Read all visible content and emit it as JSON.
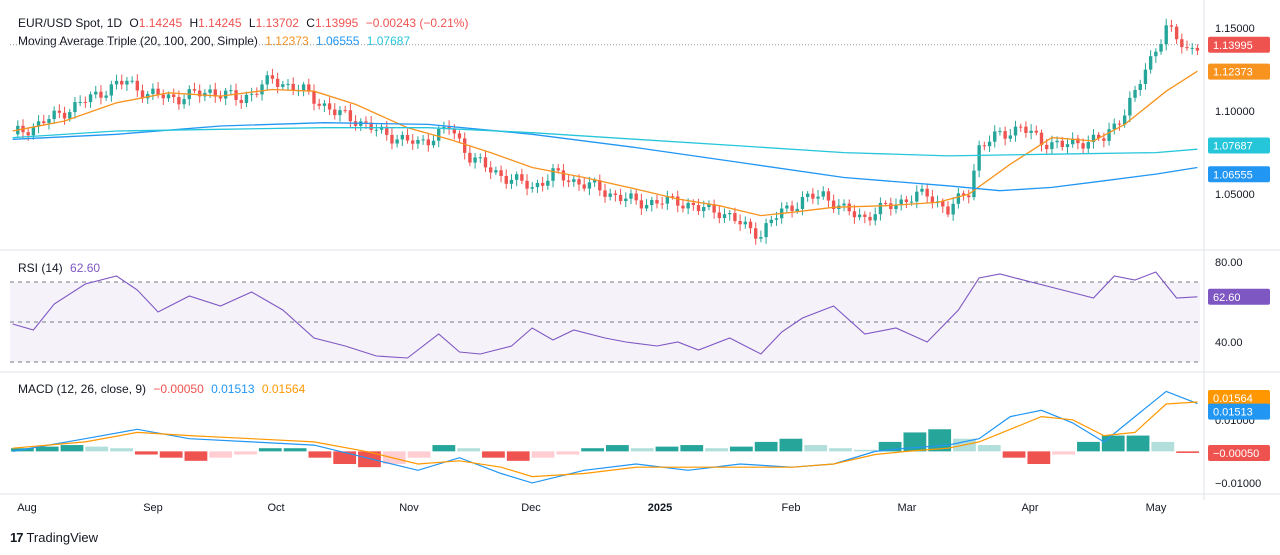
{
  "header": {
    "symbol": "EUR/USD Spot, 1D",
    "open_label": "O",
    "open": "1.14245",
    "high_label": "H",
    "high": "1.14245",
    "low_label": "L",
    "low": "1.13702",
    "close_label": "C",
    "close": "1.13995",
    "change": "−0.00243 (−0.21%)",
    "ma_title": "Moving Average Triple (20, 100, 200, Simple)",
    "ma20": "1.12373",
    "ma100": "1.06555",
    "ma200": "1.07687"
  },
  "rsi_panel": {
    "title": "RSI (14)",
    "value": "62.60"
  },
  "macd_panel": {
    "title": "MACD (12, 26, close, 9)",
    "hist": "−0.00050",
    "macd": "0.01513",
    "signal": "0.01564"
  },
  "footer": {
    "brand_mark": "17",
    "brand_name": "TradingView"
  },
  "colors": {
    "up": "#26a69a",
    "down": "#ef5350",
    "ma20": "#f7931e",
    "ma100": "#2196f3",
    "ma200": "#26c6da",
    "rsi": "#7e57c2",
    "macd": "#2196f3",
    "signal": "#ff9800"
  },
  "chart_data": [
    {
      "type": "candlestick",
      "title": "EUR/USD Spot, 1D",
      "x": [
        "Aug",
        "Sep",
        "Oct",
        "Nov",
        "Dec",
        "2025",
        "Feb",
        "Mar",
        "Apr",
        "May"
      ],
      "y_ticks": [
        "1.15000",
        "1.10000",
        "1.05000"
      ],
      "ylim": [
        1.0163,
        1.1621
      ],
      "last_price_label": "1.13995",
      "price_path": [
        [
          0,
          1.086
        ],
        [
          5,
          1.092
        ],
        [
          12,
          1.103
        ],
        [
          18,
          1.113
        ],
        [
          22,
          1.118
        ],
        [
          26,
          1.11
        ],
        [
          32,
          1.108
        ],
        [
          38,
          1.112
        ],
        [
          44,
          1.107
        ],
        [
          50,
          1.119
        ],
        [
          56,
          1.112
        ],
        [
          62,
          1.099
        ],
        [
          66,
          1.095
        ],
        [
          70,
          1.088
        ],
        [
          74,
          1.084
        ],
        [
          78,
          1.08
        ],
        [
          84,
          1.09
        ],
        [
          88,
          1.073
        ],
        [
          92,
          1.064
        ],
        [
          96,
          1.059
        ],
        [
          100,
          1.054
        ],
        [
          104,
          1.062
        ],
        [
          108,
          1.058
        ],
        [
          112,
          1.054
        ],
        [
          116,
          1.049
        ],
        [
          120,
          1.045
        ],
        [
          124,
          1.045
        ],
        [
          128,
          1.046
        ],
        [
          132,
          1.041
        ],
        [
          136,
          1.04
        ],
        [
          140,
          1.032
        ],
        [
          144,
          1.026
        ],
        [
          148,
          1.04
        ],
        [
          152,
          1.046
        ],
        [
          156,
          1.05
        ],
        [
          160,
          1.04
        ],
        [
          164,
          1.036
        ],
        [
          168,
          1.042
        ],
        [
          172,
          1.047
        ],
        [
          176,
          1.05
        ],
        [
          180,
          1.04
        ],
        [
          184,
          1.052
        ],
        [
          186,
          1.078
        ],
        [
          190,
          1.086
        ],
        [
          194,
          1.09
        ],
        [
          198,
          1.082
        ],
        [
          202,
          1.079
        ],
        [
          206,
          1.082
        ],
        [
          210,
          1.083
        ],
        [
          214,
          1.1
        ],
        [
          216,
          1.11
        ],
        [
          218,
          1.125
        ],
        [
          220,
          1.138
        ],
        [
          222,
          1.15
        ],
        [
          226,
          1.137
        ],
        [
          228,
          1.14
        ]
      ],
      "series": [
        {
          "name": "MA 20",
          "color": "#f7931e",
          "values": [
            [
              0,
              1.088
            ],
            [
              10,
              1.094
            ],
            [
              20,
              1.105
            ],
            [
              30,
              1.111
            ],
            [
              40,
              1.109
            ],
            [
              50,
              1.113
            ],
            [
              58,
              1.112
            ],
            [
              66,
              1.104
            ],
            [
              76,
              1.09
            ],
            [
              84,
              1.083
            ],
            [
              92,
              1.075
            ],
            [
              100,
              1.066
            ],
            [
              110,
              1.06
            ],
            [
              120,
              1.053
            ],
            [
              128,
              1.047
            ],
            [
              136,
              1.043
            ],
            [
              144,
              1.037
            ],
            [
              150,
              1.039
            ],
            [
              158,
              1.042
            ],
            [
              168,
              1.043
            ],
            [
              178,
              1.045
            ],
            [
              184,
              1.05
            ],
            [
              192,
              1.068
            ],
            [
              200,
              1.084
            ],
            [
              208,
              1.082
            ],
            [
              214,
              1.092
            ],
            [
              222,
              1.112
            ],
            [
              228,
              1.124
            ]
          ]
        },
        {
          "name": "MA 100",
          "color": "#2196f3",
          "values": [
            [
              0,
              1.083
            ],
            [
              20,
              1.086
            ],
            [
              40,
              1.091
            ],
            [
              60,
              1.093
            ],
            [
              80,
              1.092
            ],
            [
              100,
              1.086
            ],
            [
              120,
              1.078
            ],
            [
              140,
              1.069
            ],
            [
              160,
              1.06
            ],
            [
              180,
              1.055
            ],
            [
              190,
              1.052
            ],
            [
              200,
              1.054
            ],
            [
              210,
              1.058
            ],
            [
              220,
              1.062
            ],
            [
              228,
              1.066
            ]
          ]
        },
        {
          "name": "MA 200",
          "color": "#26c6da",
          "values": [
            [
              0,
              1.084
            ],
            [
              20,
              1.088
            ],
            [
              40,
              1.089
            ],
            [
              60,
              1.09
            ],
            [
              80,
              1.09
            ],
            [
              100,
              1.087
            ],
            [
              120,
              1.083
            ],
            [
              140,
              1.079
            ],
            [
              160,
              1.075
            ],
            [
              180,
              1.073
            ],
            [
              200,
              1.074
            ],
            [
              220,
              1.075
            ],
            [
              228,
              1.077
            ]
          ]
        }
      ]
    },
    {
      "type": "line",
      "title": "RSI (14)",
      "y_ticks": [
        "80.00",
        "40.00"
      ],
      "ylim": [
        25,
        85
      ],
      "levels": [
        70,
        50,
        30
      ],
      "series": [
        {
          "name": "RSI",
          "color": "#7e57c2",
          "values": [
            [
              0,
              49
            ],
            [
              4,
              46
            ],
            [
              8,
              59
            ],
            [
              14,
              69
            ],
            [
              20,
              73
            ],
            [
              24,
              66
            ],
            [
              28,
              55
            ],
            [
              34,
              63
            ],
            [
              40,
              58
            ],
            [
              46,
              65
            ],
            [
              52,
              56
            ],
            [
              58,
              42
            ],
            [
              64,
              38
            ],
            [
              70,
              33
            ],
            [
              76,
              32
            ],
            [
              82,
              44
            ],
            [
              86,
              35
            ],
            [
              90,
              34
            ],
            [
              96,
              38
            ],
            [
              100,
              47
            ],
            [
              104,
              41
            ],
            [
              108,
              46
            ],
            [
              114,
              42
            ],
            [
              118,
              40
            ],
            [
              124,
              38
            ],
            [
              128,
              40
            ],
            [
              132,
              36
            ],
            [
              138,
              42
            ],
            [
              144,
              34
            ],
            [
              148,
              45
            ],
            [
              152,
              52
            ],
            [
              158,
              58
            ],
            [
              164,
              44
            ],
            [
              170,
              47
            ],
            [
              176,
              40
            ],
            [
              182,
              56
            ],
            [
              186,
              72
            ],
            [
              190,
              74
            ],
            [
              196,
              70
            ],
            [
              202,
              66
            ],
            [
              208,
              62
            ],
            [
              212,
              73
            ],
            [
              216,
              71
            ],
            [
              220,
              75
            ],
            [
              224,
              62
            ],
            [
              228,
              62.6
            ]
          ]
        }
      ]
    },
    {
      "type": "histogram",
      "title": "MACD (12, 26, close, 9)",
      "y_ticks": [
        "0.01000",
        "−0.01000"
      ],
      "ylim": [
        -0.0135,
        0.0245
      ],
      "histogram": [
        0.001,
        0.0015,
        0.002,
        0.0015,
        0.001,
        -0.001,
        -0.002,
        -0.003,
        -0.002,
        -0.001,
        0.001,
        0.001,
        -0.002,
        -0.004,
        -0.005,
        -0.004,
        -0.002,
        0.002,
        0.001,
        -0.002,
        -0.003,
        -0.002,
        -0.001,
        0.001,
        0.002,
        0.001,
        0.0015,
        0.002,
        0.001,
        0.0015,
        0.003,
        0.004,
        0.002,
        0.001,
        0.0005,
        0.003,
        0.006,
        0.007,
        0.004,
        0.002,
        -0.002,
        -0.004,
        -0.001,
        0.003,
        0.005,
        0.005,
        0.003,
        -0.0005
      ],
      "series": [
        {
          "name": "MACD",
          "color": "#2196f3",
          "values": [
            [
              0,
              0.0
            ],
            [
              14,
              0.004
            ],
            [
              24,
              0.007
            ],
            [
              34,
              0.004
            ],
            [
              46,
              0.003
            ],
            [
              58,
              0.002
            ],
            [
              68,
              -0.002
            ],
            [
              78,
              -0.006
            ],
            [
              86,
              -0.002
            ],
            [
              94,
              -0.007
            ],
            [
              100,
              -0.01
            ],
            [
              110,
              -0.006
            ],
            [
              120,
              -0.004
            ],
            [
              130,
              -0.006
            ],
            [
              140,
              -0.004
            ],
            [
              150,
              -0.005
            ],
            [
              158,
              -0.004
            ],
            [
              166,
              0.0
            ],
            [
              172,
              0.001
            ],
            [
              180,
              0.002
            ],
            [
              186,
              0.004
            ],
            [
              192,
              0.011
            ],
            [
              198,
              0.013
            ],
            [
              204,
              0.009
            ],
            [
              210,
              0.003
            ],
            [
              216,
              0.011
            ],
            [
              222,
              0.019
            ],
            [
              228,
              0.01513
            ]
          ]
        },
        {
          "name": "Signal",
          "color": "#ff9800",
          "values": [
            [
              0,
              0.001
            ],
            [
              14,
              0.003
            ],
            [
              24,
              0.006
            ],
            [
              34,
              0.005
            ],
            [
              46,
              0.004
            ],
            [
              58,
              0.003
            ],
            [
              68,
              0.0
            ],
            [
              78,
              -0.004
            ],
            [
              86,
              -0.003
            ],
            [
              94,
              -0.005
            ],
            [
              100,
              -0.008
            ],
            [
              110,
              -0.007
            ],
            [
              120,
              -0.005
            ],
            [
              130,
              -0.005
            ],
            [
              140,
              -0.005
            ],
            [
              150,
              -0.005
            ],
            [
              158,
              -0.004
            ],
            [
              166,
              -0.001
            ],
            [
              172,
              0.0
            ],
            [
              180,
              0.001
            ],
            [
              186,
              0.003
            ],
            [
              192,
              0.007
            ],
            [
              198,
              0.011
            ],
            [
              204,
              0.01
            ],
            [
              210,
              0.005
            ],
            [
              216,
              0.006
            ],
            [
              222,
              0.015
            ],
            [
              228,
              0.01564
            ]
          ]
        }
      ]
    }
  ]
}
